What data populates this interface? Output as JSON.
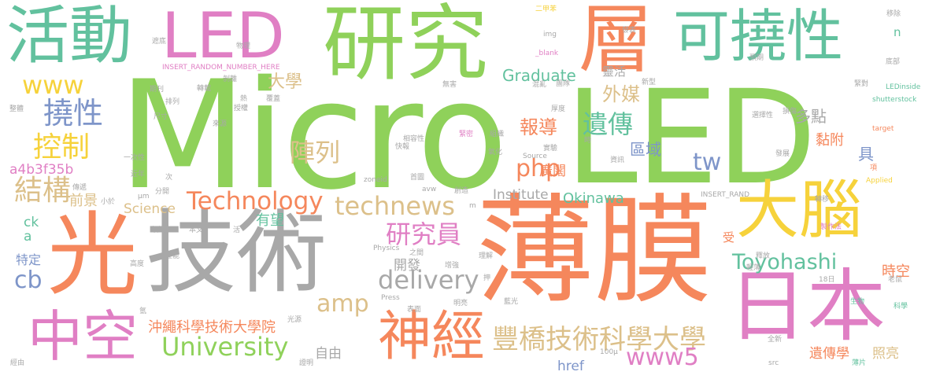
{
  "palette": {
    "green": "#8fd15a",
    "orange": "#f5875c",
    "pink": "#e07fc4",
    "gray": "#a8a8a8",
    "tan": "#dcc08a",
    "teal": "#62c19e",
    "yellow": "#f6d23b",
    "blue": "#7e95c9"
  },
  "words": [
    {
      "text": "Micro",
      "color": "green",
      "weight": 1.0
    },
    {
      "text": "LED",
      "color": "green",
      "weight": 1.0
    },
    {
      "text": "薄膜",
      "color": "orange",
      "weight": 0.9
    },
    {
      "text": "光",
      "color": "orange",
      "weight": 0.85
    },
    {
      "text": "技術",
      "color": "gray",
      "weight": 0.85
    },
    {
      "text": "研究",
      "color": "green",
      "weight": 0.75
    },
    {
      "text": "日本",
      "color": "pink",
      "weight": 0.7
    },
    {
      "text": "活動",
      "color": "teal",
      "weight": 0.6
    },
    {
      "text": "LED",
      "color": "pink",
      "weight": 0.6
    },
    {
      "text": "層",
      "color": "orange",
      "weight": 0.6
    },
    {
      "text": "可撓性",
      "color": "teal",
      "weight": 0.55
    },
    {
      "text": "大腦",
      "color": "yellow",
      "weight": 0.55
    },
    {
      "text": "中空",
      "color": "pink",
      "weight": 0.5
    },
    {
      "text": "神經",
      "color": "orange",
      "weight": 0.5
    },
    {
      "text": "豐橋技術科學大學",
      "color": "tan",
      "weight": 0.35
    },
    {
      "text": "Technology",
      "color": "orange",
      "weight": 0.3
    },
    {
      "text": "technews",
      "color": "tan",
      "weight": 0.3
    },
    {
      "text": "University",
      "color": "green",
      "weight": 0.3
    },
    {
      "text": "delivery",
      "color": "gray",
      "weight": 0.3
    },
    {
      "text": "www5",
      "color": "pink",
      "weight": 0.28
    },
    {
      "text": "Toyohashi",
      "color": "teal",
      "weight": 0.26
    },
    {
      "text": "研究員",
      "color": "pink",
      "weight": 0.25
    },
    {
      "text": "遺傳",
      "color": "teal",
      "weight": 0.25
    },
    {
      "text": "撓性",
      "color": "blue",
      "weight": 0.25
    },
    {
      "text": "控制",
      "color": "yellow",
      "weight": 0.25
    },
    {
      "text": "結構",
      "color": "tan",
      "weight": 0.25
    },
    {
      "text": "陣列",
      "color": "tan",
      "weight": 0.25
    },
    {
      "text": "amp",
      "color": "tan",
      "weight": 0.25
    },
    {
      "text": "php",
      "color": "orange",
      "weight": 0.25
    },
    {
      "text": "tw",
      "color": "blue",
      "weight": 0.25
    },
    {
      "text": "www",
      "color": "yellow",
      "weight": 0.22
    },
    {
      "text": "cb",
      "color": "blue",
      "weight": 0.22
    },
    {
      "text": "報導",
      "color": "orange",
      "weight": 0.2
    },
    {
      "text": "外媒",
      "color": "tan",
      "weight": 0.2
    },
    {
      "text": "大學",
      "color": "tan",
      "weight": 0.15
    },
    {
      "text": "a4b3f35b",
      "color": "pink",
      "weight": 0.18
    },
    {
      "text": "沖繩科學技術大學院",
      "color": "orange",
      "weight": 0.15
    },
    {
      "text": "Graduate",
      "color": "teal",
      "weight": 0.15
    },
    {
      "text": "Institute",
      "color": "gray",
      "weight": 0.12
    },
    {
      "text": "Okinawa",
      "color": "teal",
      "weight": 0.12
    },
    {
      "text": "Science",
      "color": "tan",
      "weight": 0.12
    },
    {
      "text": "有望",
      "color": "teal",
      "weight": 0.12
    },
    {
      "text": "開發",
      "color": "gray",
      "weight": 0.12
    },
    {
      "text": "前景",
      "color": "tan",
      "weight": 0.12
    },
    {
      "text": "區域",
      "color": "blue",
      "weight": 0.12
    },
    {
      "text": "廣闊",
      "color": "orange",
      "weight": 0.12
    },
    {
      "text": "多點",
      "color": "gray",
      "weight": 0.12
    },
    {
      "text": "黏附",
      "color": "orange",
      "weight": 0.12
    },
    {
      "text": "具",
      "color": "blue",
      "weight": 0.12
    },
    {
      "text": "時空",
      "color": "orange",
      "weight": 0.12
    },
    {
      "text": "遺傳學",
      "color": "orange",
      "weight": 0.12
    },
    {
      "text": "照亮",
      "color": "tan",
      "weight": 0.12
    },
    {
      "text": "自由",
      "color": "gray",
      "weight": 0.1
    },
    {
      "text": "href",
      "color": "blue",
      "weight": 0.1
    },
    {
      "text": "特定",
      "color": "blue",
      "weight": 0.1
    },
    {
      "text": "ck",
      "color": "teal",
      "weight": 0.1
    },
    {
      "text": "a",
      "color": "teal",
      "weight": 0.1
    },
    {
      "text": "n",
      "color": "teal",
      "weight": 0.08
    },
    {
      "text": "受",
      "color": "orange",
      "weight": 0.08
    },
    {
      "text": "靈活",
      "color": "gray",
      "weight": 0.08
    },
    {
      "text": "二甲苯",
      "color": "yellow",
      "weight": 0.04
    },
    {
      "text": "img",
      "color": "gray",
      "weight": 0.04
    },
    {
      "text": "_blank",
      "color": "pink",
      "weight": 0.04
    },
    {
      "text": "INSERT_RANDOM_NUMBER_HERE",
      "color": "pink",
      "weight": 0.04
    },
    {
      "text": "物理",
      "color": "gray",
      "weight": 0.04
    },
    {
      "text": "遮底",
      "color": "gray",
      "weight": 0.04
    },
    {
      "text": "移除",
      "color": "gray",
      "weight": 0.04
    },
    {
      "text": "發表",
      "color": "gray",
      "weight": 0.04
    },
    {
      "text": "預期",
      "color": "gray",
      "weight": 0.04
    },
    {
      "text": "底部",
      "color": "gray",
      "weight": 0.04
    },
    {
      "text": "緊對",
      "color": "gray",
      "weight": 0.04
    },
    {
      "text": "LEDinside",
      "color": "teal",
      "weight": 0.04
    },
    {
      "text": "shutterstock",
      "color": "teal",
      "weight": 0.04
    },
    {
      "text": "target",
      "color": "orange",
      "weight": 0.04
    },
    {
      "text": "項",
      "color": "orange",
      "weight": 0.04
    },
    {
      "text": "Applied",
      "color": "yellow",
      "weight": 0.04
    },
    {
      "text": "轉移",
      "color": "gray",
      "weight": 0.04
    },
    {
      "text": "製作法",
      "color": "pink",
      "weight": 0.04
    },
    {
      "text": "老鼠",
      "color": "gray",
      "weight": 0.04
    },
    {
      "text": "科學",
      "color": "teal",
      "weight": 0.04
    },
    {
      "text": "生物",
      "color": "teal",
      "weight": 0.04
    },
    {
      "text": "薄片",
      "color": "teal",
      "weight": 0.04
    },
    {
      "text": "src",
      "color": "gray",
      "weight": 0.04
    },
    {
      "text": "全新",
      "color": "gray",
      "weight": 0.04
    },
    {
      "text": "18日",
      "color": "gray",
      "weight": 0.04
    },
    {
      "text": "輕薄",
      "color": "gray",
      "weight": 0.04
    },
    {
      "text": "釋放",
      "color": "gray",
      "weight": 0.04
    },
    {
      "text": "藍光",
      "color": "gray",
      "weight": 0.04
    },
    {
      "text": "100μ",
      "color": "gray",
      "weight": 0.04
    },
    {
      "text": "發展",
      "color": "gray",
      "weight": 0.04
    },
    {
      "text": "損傷",
      "color": "gray",
      "weight": 0.04
    },
    {
      "text": "選擇性",
      "color": "gray",
      "weight": 0.04
    },
    {
      "text": "INSERT_RAND",
      "color": "gray",
      "weight": 0.04
    },
    {
      "text": "新型",
      "color": "gray",
      "weight": 0.04
    },
    {
      "text": "團隊",
      "color": "gray",
      "weight": 0.04
    },
    {
      "text": "厚度",
      "color": "gray",
      "weight": 0.04
    },
    {
      "text": "時",
      "color": "gray",
      "weight": 0.04
    },
    {
      "text": "資訊",
      "color": "gray",
      "weight": 0.04
    },
    {
      "text": "實驗",
      "color": "gray",
      "weight": 0.04
    },
    {
      "text": "Source",
      "color": "gray",
      "weight": 0.04
    },
    {
      "text": "氧化",
      "color": "gray",
      "weight": 0.04
    },
    {
      "text": "組織",
      "color": "gray",
      "weight": 0.04
    },
    {
      "text": "緊密",
      "color": "pink",
      "weight": 0.04
    },
    {
      "text": "相容性",
      "color": "gray",
      "weight": 0.04
    },
    {
      "text": "快報",
      "color": "gray",
      "weight": 0.04
    },
    {
      "text": "首圖",
      "color": "gray",
      "weight": 0.04
    },
    {
      "text": "avw",
      "color": "gray",
      "weight": 0.04
    },
    {
      "text": "創造",
      "color": "gray",
      "weight": 0.04
    },
    {
      "text": "m",
      "color": "gray",
      "weight": 0.04
    },
    {
      "text": "zoneid",
      "color": "gray",
      "weight": 0.04
    },
    {
      "text": "μm",
      "color": "gray",
      "weight": 0.04
    },
    {
      "text": "分開",
      "color": "gray",
      "weight": 0.04
    },
    {
      "text": "次",
      "color": "gray",
      "weight": 0.04
    },
    {
      "text": "小於",
      "color": "gray",
      "weight": 0.04
    },
    {
      "text": "近年",
      "color": "gray",
      "weight": 0.04
    },
    {
      "text": "一次性",
      "color": "gray",
      "weight": 0.04
    },
    {
      "text": "尺寸",
      "color": "gray",
      "weight": 0.04
    },
    {
      "text": "來源",
      "color": "gray",
      "weight": 0.04
    },
    {
      "text": "授權",
      "color": "gray",
      "weight": 0.04
    },
    {
      "text": "熱",
      "color": "gray",
      "weight": 0.04
    },
    {
      "text": "覆蓋",
      "color": "gray",
      "weight": 0.04
    },
    {
      "text": "剝離",
      "color": "gray",
      "weight": 0.04
    },
    {
      "text": "轉載",
      "color": "gray",
      "weight": 0.04
    },
    {
      "text": "期刊",
      "color": "gray",
      "weight": 0.04
    },
    {
      "text": "排列",
      "color": "gray",
      "weight": 0.04
    },
    {
      "text": "無害",
      "color": "gray",
      "weight": 0.04
    },
    {
      "text": "混亂",
      "color": "gray",
      "weight": 0.04
    },
    {
      "text": "整體",
      "color": "gray",
      "weight": 0.04
    },
    {
      "text": "傳遞",
      "color": "gray",
      "weight": 0.04
    },
    {
      "text": "領域",
      "color": "gray",
      "weight": 0.04
    },
    {
      "text": "本文",
      "color": "gray",
      "weight": 0.04
    },
    {
      "text": "活",
      "color": "gray",
      "weight": 0.04
    },
    {
      "text": "性能",
      "color": "gray",
      "weight": 0.04
    },
    {
      "text": "高度",
      "color": "gray",
      "weight": 0.04
    },
    {
      "text": "Physics",
      "color": "gray",
      "weight": 0.04
    },
    {
      "text": "之間",
      "color": "gray",
      "weight": 0.04
    },
    {
      "text": "增強",
      "color": "gray",
      "weight": 0.04
    },
    {
      "text": "理解",
      "color": "gray",
      "weight": 0.04
    },
    {
      "text": "表面",
      "color": "gray",
      "weight": 0.04
    },
    {
      "text": "明亮",
      "color": "gray",
      "weight": 0.04
    },
    {
      "text": "Press",
      "color": "gray",
      "weight": 0.04
    },
    {
      "text": "氫",
      "color": "gray",
      "weight": 0.04
    },
    {
      "text": "光源",
      "color": "gray",
      "weight": 0.04
    },
    {
      "text": "證明",
      "color": "gray",
      "weight": 0.04
    },
    {
      "text": "經由",
      "color": "gray",
      "weight": 0.04
    },
    {
      "text": "押",
      "color": "gray",
      "weight": 0.04
    }
  ]
}
